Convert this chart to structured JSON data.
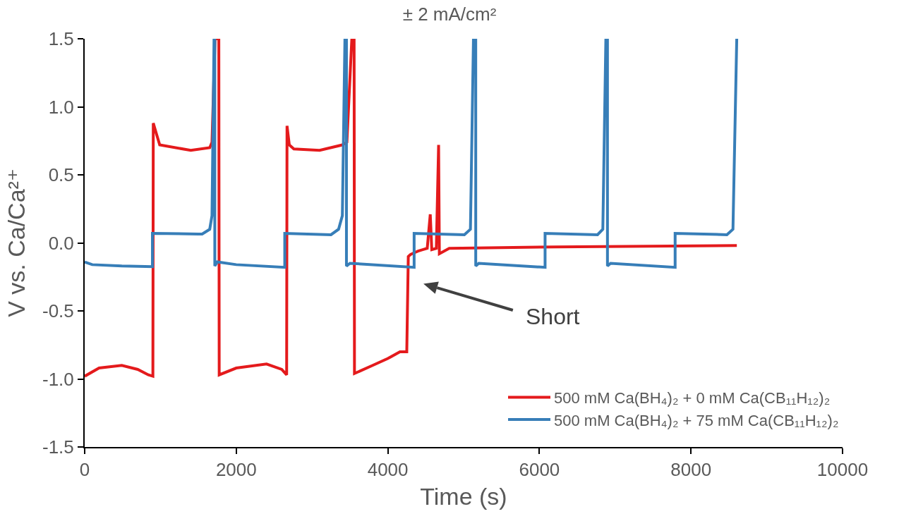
{
  "chart_data": {
    "type": "line",
    "title": "± 2 mA/cm²",
    "xlabel": "Time (s)",
    "ylabel": "V vs. Ca/Ca²⁺",
    "xlim": [
      0,
      10000
    ],
    "xticks": [
      0,
      2000,
      4000,
      6000,
      8000,
      10000
    ],
    "ylim": [
      -1.5,
      1.5
    ],
    "yticks": [
      {
        "value": -1.5,
        "label": "-1.5"
      },
      {
        "value": -1,
        "label": "-1.0"
      },
      {
        "value": -0.5,
        "label": "-0.5"
      },
      {
        "value": 0,
        "label": "0.0"
      },
      {
        "value": 0.5,
        "label": "0.5"
      },
      {
        "value": 1,
        "label": "1.0"
      },
      {
        "value": 1.5,
        "label": "1.5"
      }
    ],
    "grid": false,
    "legend": "bottom right",
    "marker": "none",
    "line_style": "solid",
    "annotations": [
      "Short"
    ],
    "series": [
      {
        "name": "500 mM Ca(BH₄)₂ + 0 mM Ca(CB₁₁H₁₂)₂",
        "color": "#e41a1c",
        "x": [
          0,
          190,
          490,
          700,
          840,
          900,
          905,
          990,
          1400,
          1650,
          1680,
          1720,
          1770,
          1775,
          2000,
          2400,
          2600,
          2665,
          2670,
          2700,
          2760,
          3100,
          3400,
          3460,
          3525,
          3555,
          3560,
          3800,
          4000,
          4160,
          4250,
          4270,
          4300,
          4360,
          4400,
          4460,
          4520,
          4560,
          4580,
          4640,
          4670,
          4680,
          4810,
          6215,
          8605
        ],
        "values": [
          -0.98,
          -0.92,
          -0.9,
          -0.93,
          -0.97,
          -0.98,
          0.88,
          0.72,
          0.68,
          0.7,
          0.74,
          1.5,
          1.5,
          -0.97,
          -0.92,
          -0.89,
          -0.93,
          -0.97,
          0.86,
          0.72,
          0.69,
          0.68,
          0.72,
          0.74,
          1.5,
          1.5,
          -0.96,
          -0.9,
          -0.85,
          -0.8,
          -0.8,
          -0.1,
          -0.085,
          -0.07,
          -0.06,
          -0.05,
          -0.04,
          0.21,
          -0.05,
          -0.04,
          0.72,
          -0.08,
          -0.04,
          -0.03,
          -0.02
        ]
      },
      {
        "name": "500 mM Ca(BH₄)₂ + 75 mM Ca(CB₁₁H₁₂)₂",
        "color": "#377eb8",
        "x": [
          0,
          100,
          490,
          894,
          894,
          1500,
          1550,
          1650,
          1680,
          1707,
          1717,
          1717,
          1750,
          2000,
          2640,
          2640,
          3250,
          3350,
          3400,
          3434,
          3454,
          3454,
          3500,
          4347,
          4347,
          5010,
          5090,
          5130,
          5160,
          5160,
          5200,
          6075,
          6075,
          6767,
          6837,
          6877,
          6898,
          6898,
          6940,
          7791,
          7791,
          8474,
          8554,
          8604
        ],
        "values": [
          -0.14,
          -0.16,
          -0.17,
          -0.175,
          0.07,
          0.065,
          0.065,
          0.1,
          0.2,
          1.5,
          1.5,
          -0.17,
          -0.14,
          -0.16,
          -0.18,
          0.07,
          0.06,
          0.1,
          0.2,
          1.5,
          1.5,
          -0.17,
          -0.15,
          -0.18,
          0.07,
          0.06,
          0.1,
          1.5,
          1.5,
          -0.17,
          -0.15,
          -0.18,
          0.07,
          0.06,
          0.1,
          1.5,
          1.5,
          -0.17,
          -0.15,
          -0.18,
          0.07,
          0.06,
          0.1,
          1.5
        ]
      }
    ]
  }
}
